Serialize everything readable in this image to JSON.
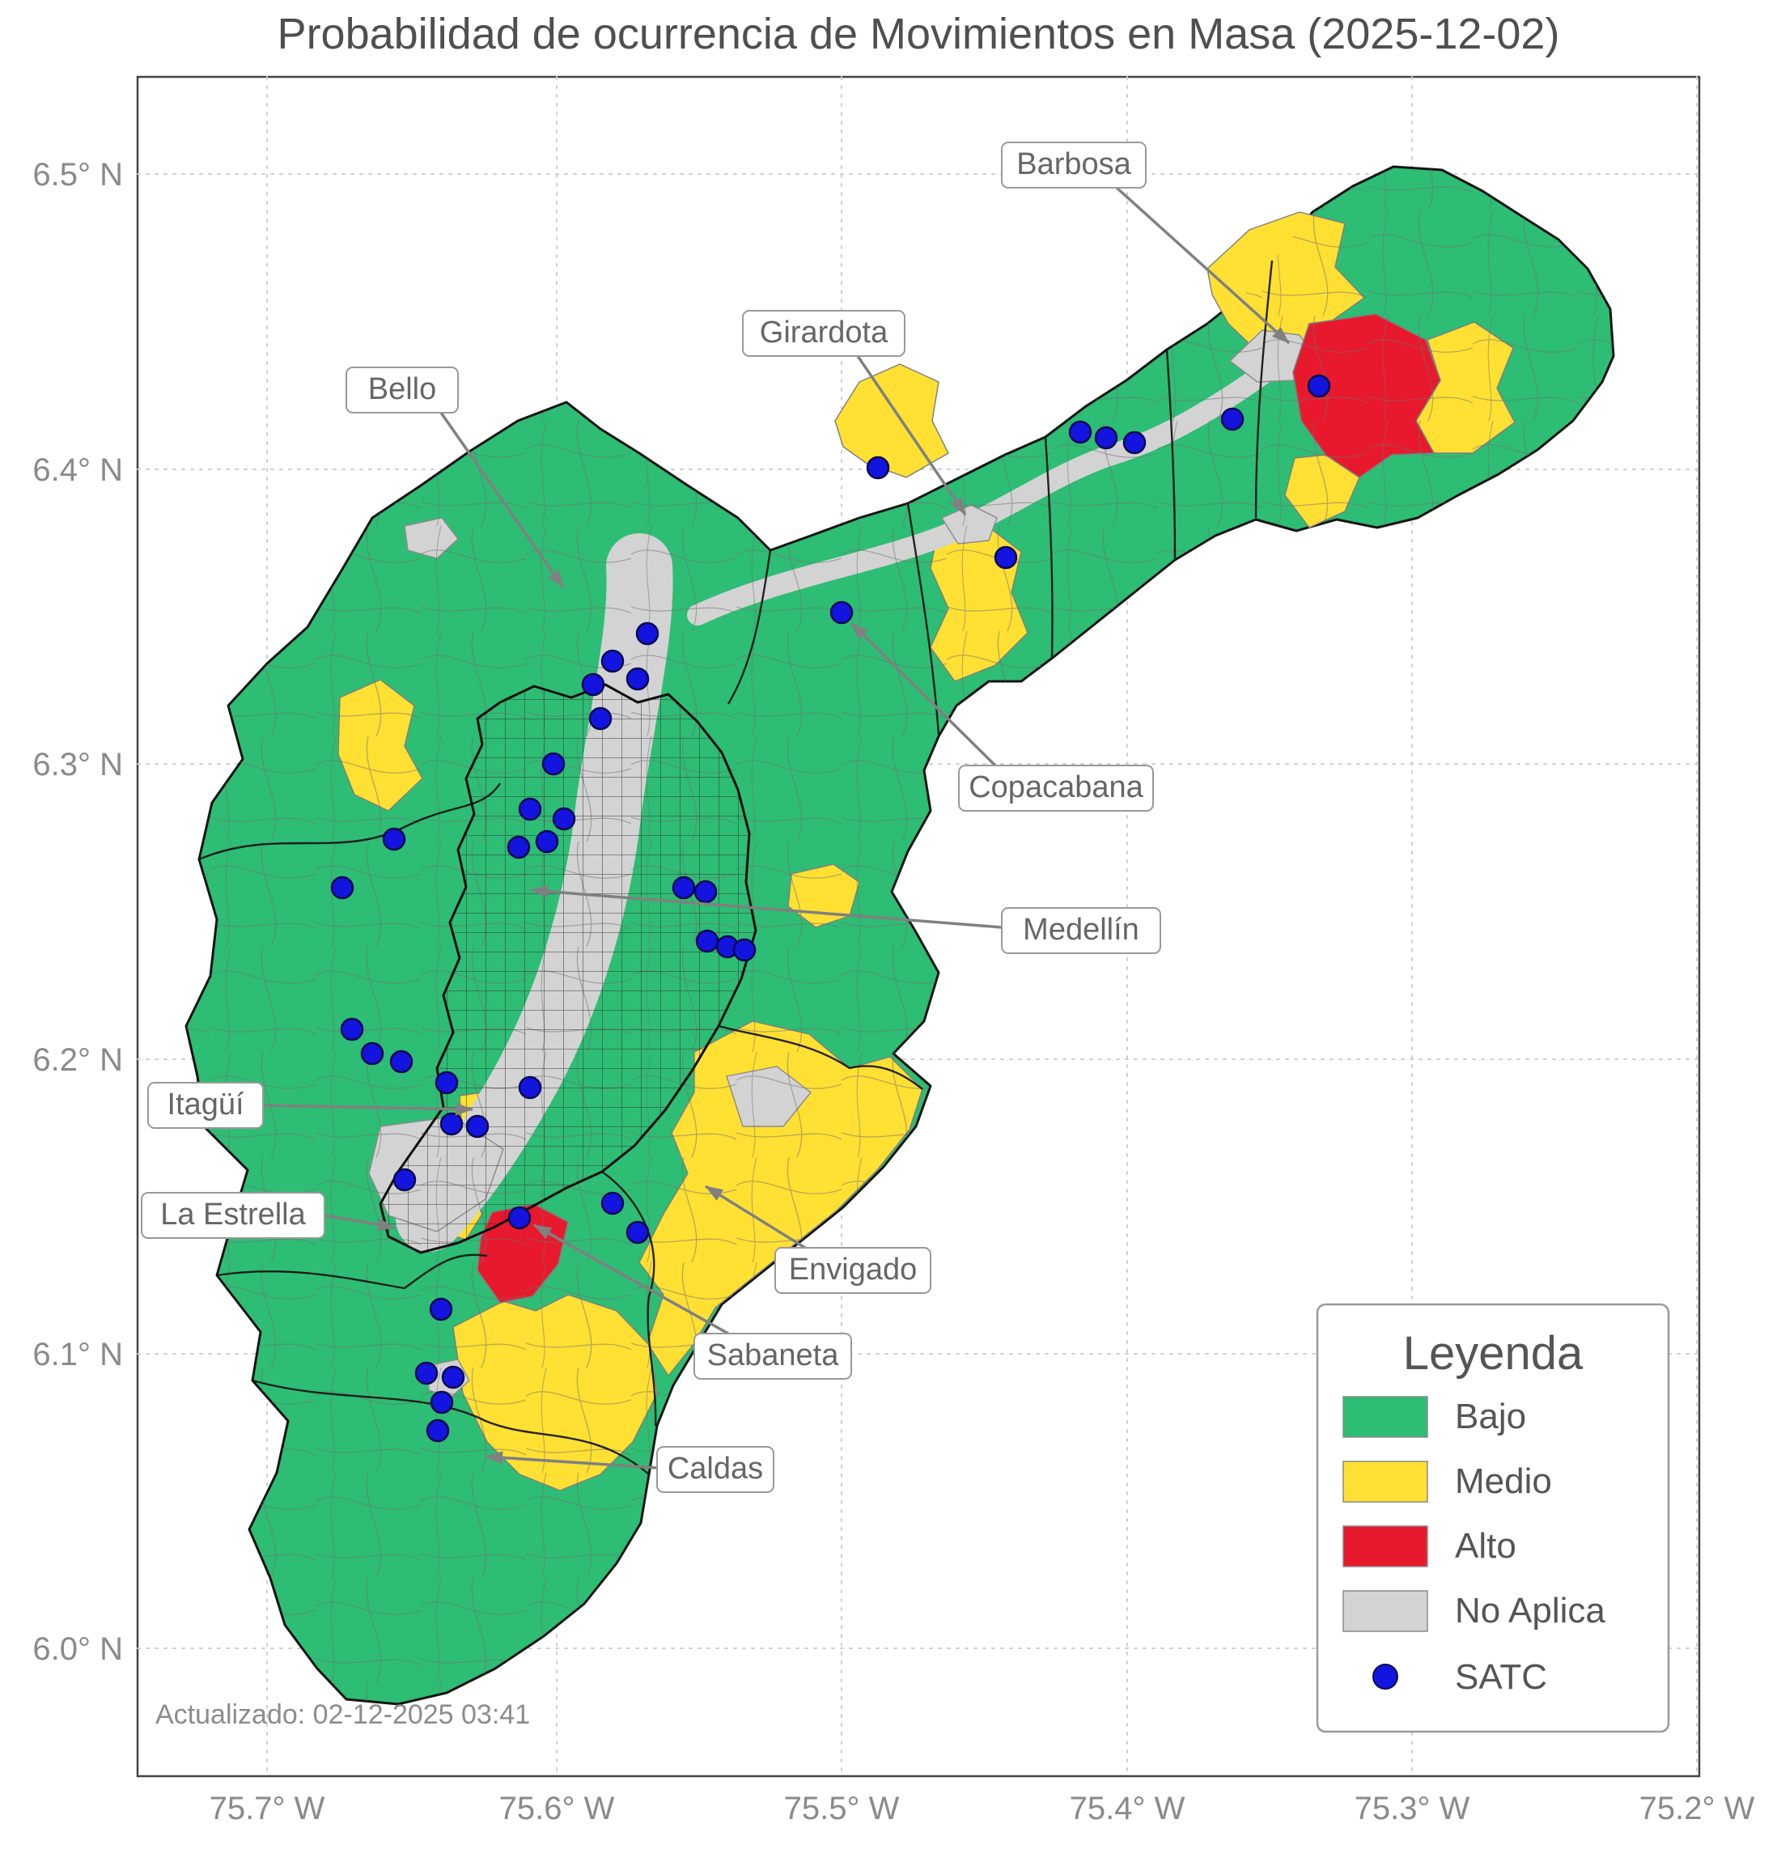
{
  "title": "Probabilidad de ocurrencia de Movimientos en Masa (2025-12-02)",
  "updated_text": "Actualizado: 02-12-2025 03:41",
  "colors": {
    "bajo": "#2EBD74",
    "medio": "#FFE033",
    "alto": "#E8192C",
    "no_aplica": "#D3D3D3",
    "satc": "#1414E0"
  },
  "axes": {
    "x_ticks": [
      "75.7° W",
      "75.6° W",
      "75.5° W",
      "75.4° W",
      "75.3° W",
      "75.2° W"
    ],
    "y_ticks": [
      "6.5° N",
      "6.4° N",
      "6.3° N",
      "6.2° N",
      "6.1° N",
      "6.0° N"
    ]
  },
  "legend": {
    "title": "Leyenda",
    "items": [
      {
        "label": "Bajo"
      },
      {
        "label": "Medio"
      },
      {
        "label": "Alto"
      },
      {
        "label": "No Aplica"
      },
      {
        "label": "SATC"
      }
    ]
  },
  "labels": {
    "barbosa": "Barbosa",
    "girardota": "Girardota",
    "bello": "Bello",
    "copacabana": "Copacabana",
    "medellin": "Medellín",
    "itagui": "Itagüí",
    "la_estrella": "La Estrella",
    "envigado": "Envigado",
    "sabaneta": "Sabaneta",
    "caldas": "Caldas"
  },
  "map": {
    "satc_points": [
      [
        1630,
        477
      ],
      [
        1523,
        518
      ],
      [
        1402,
        547
      ],
      [
        1367,
        541
      ],
      [
        1335,
        534
      ],
      [
        1243,
        689
      ],
      [
        1085,
        578
      ],
      [
        1040,
        757
      ],
      [
        800,
        783
      ],
      [
        757,
        817
      ],
      [
        788,
        839
      ],
      [
        733,
        846
      ],
      [
        742,
        888
      ],
      [
        684,
        944
      ],
      [
        655,
        1000
      ],
      [
        697,
        1012
      ],
      [
        676,
        1040
      ],
      [
        641,
        1047
      ],
      [
        487,
        1037
      ],
      [
        423,
        1097
      ],
      [
        845,
        1097
      ],
      [
        872,
        1102
      ],
      [
        874,
        1163
      ],
      [
        899,
        1170
      ],
      [
        920,
        1174
      ],
      [
        435,
        1272
      ],
      [
        460,
        1302
      ],
      [
        496,
        1312
      ],
      [
        552,
        1338
      ],
      [
        655,
        1344
      ],
      [
        558,
        1389
      ],
      [
        590,
        1392
      ],
      [
        500,
        1458
      ],
      [
        642,
        1505
      ],
      [
        757,
        1487
      ],
      [
        788,
        1523
      ],
      [
        545,
        1618
      ],
      [
        527,
        1697
      ],
      [
        560,
        1702
      ],
      [
        546,
        1733
      ],
      [
        541,
        1768
      ]
    ]
  }
}
